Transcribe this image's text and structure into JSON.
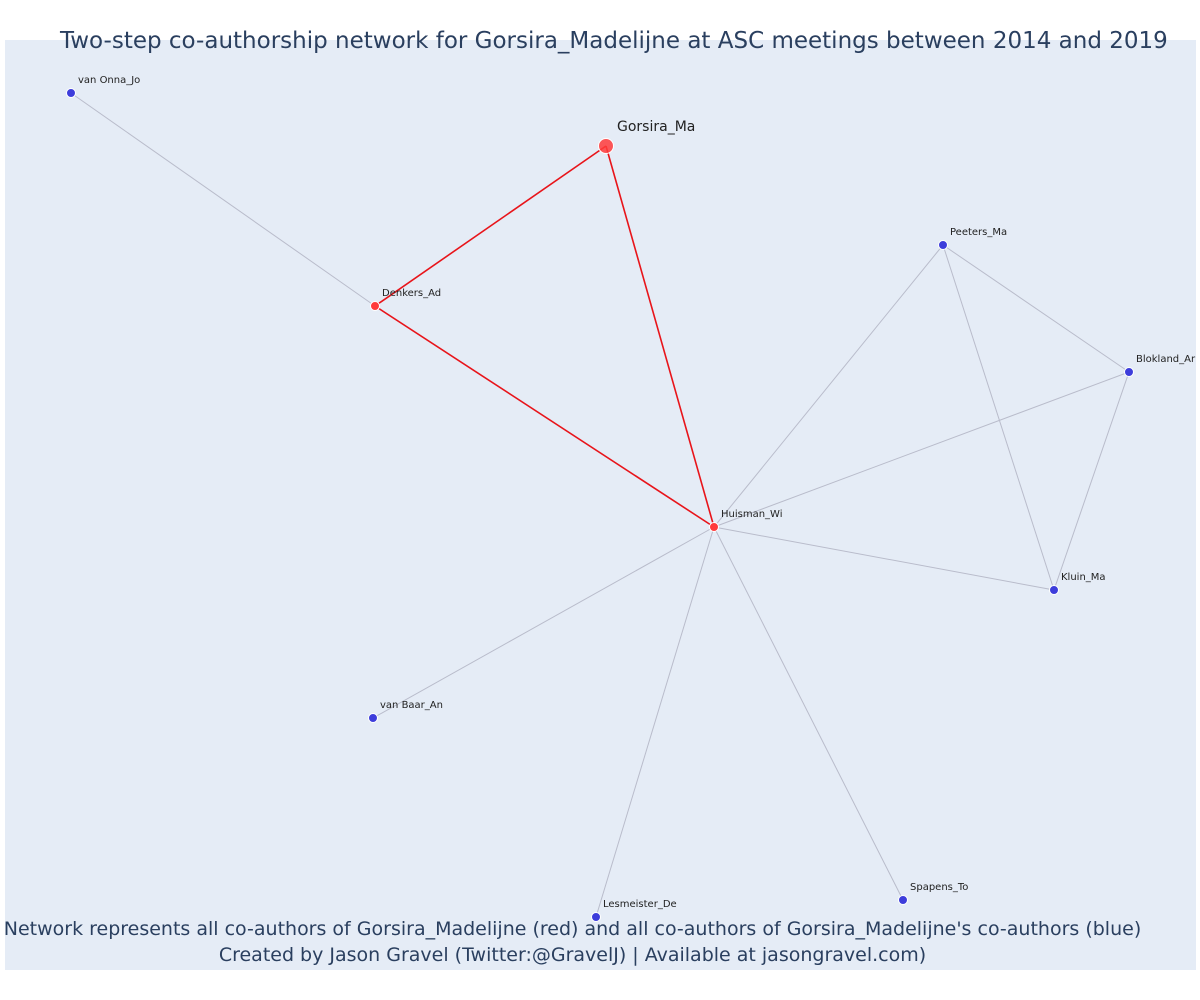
{
  "title": "Two-step co-authorship network for Gorsira_Madelijne at ASC meetings between 2014 and 2019",
  "footer": {
    "line1": "Network represents all co-authors of Gorsira_Madelijne (red) and all co-authors of Gorsira_Madelijne's co-authors (blue)",
    "line2": "Created by Jason Gravel (Twitter:@GravelJ) | Available at jasongravel.com)"
  },
  "colors": {
    "background": "#e5ecf6",
    "direct_node": "#ff3b3b",
    "indirect_node": "#3d3ddb",
    "direct_edge": "#e8141a",
    "indirect_edge": "#b9bccb",
    "text": "#2a3f5f"
  },
  "nodes": [
    {
      "id": "Gorsira_Ma",
      "label": "Gorsira_Ma",
      "group": "focal"
    },
    {
      "id": "Denkers_Ad",
      "label": "Denkers_Ad",
      "group": "direct"
    },
    {
      "id": "Huisman_Wi",
      "label": "Huisman_Wi",
      "group": "direct"
    },
    {
      "id": "van Onna_Jo",
      "label": "van Onna_Jo",
      "group": "indirect"
    },
    {
      "id": "Peeters_Ma",
      "label": "Peeters_Ma",
      "group": "indirect"
    },
    {
      "id": "Blokland_Ar",
      "label": "Blokland_Ar",
      "group": "indirect"
    },
    {
      "id": "Kluin_Ma",
      "label": "Kluin_Ma",
      "group": "indirect"
    },
    {
      "id": "van Baar_An",
      "label": "van Baar_An",
      "group": "indirect"
    },
    {
      "id": "Lesmeister_De",
      "label": "Lesmeister_De",
      "group": "indirect"
    },
    {
      "id": "Spapens_To",
      "label": "Spapens_To",
      "group": "indirect"
    }
  ],
  "edges": [
    {
      "source": "Gorsira_Ma",
      "target": "Denkers_Ad",
      "type": "direct"
    },
    {
      "source": "Gorsira_Ma",
      "target": "Huisman_Wi",
      "type": "direct"
    },
    {
      "source": "Denkers_Ad",
      "target": "Huisman_Wi",
      "type": "direct"
    },
    {
      "source": "Denkers_Ad",
      "target": "van Onna_Jo",
      "type": "indirect"
    },
    {
      "source": "Huisman_Wi",
      "target": "Peeters_Ma",
      "type": "indirect"
    },
    {
      "source": "Huisman_Wi",
      "target": "Blokland_Ar",
      "type": "indirect"
    },
    {
      "source": "Huisman_Wi",
      "target": "Kluin_Ma",
      "type": "indirect"
    },
    {
      "source": "Huisman_Wi",
      "target": "van Baar_An",
      "type": "indirect"
    },
    {
      "source": "Huisman_Wi",
      "target": "Lesmeister_De",
      "type": "indirect"
    },
    {
      "source": "Huisman_Wi",
      "target": "Spapens_To",
      "type": "indirect"
    },
    {
      "source": "Peeters_Ma",
      "target": "Blokland_Ar",
      "type": "indirect"
    },
    {
      "source": "Peeters_Ma",
      "target": "Kluin_Ma",
      "type": "indirect"
    },
    {
      "source": "Blokland_Ar",
      "target": "Kluin_Ma",
      "type": "indirect"
    }
  ]
}
